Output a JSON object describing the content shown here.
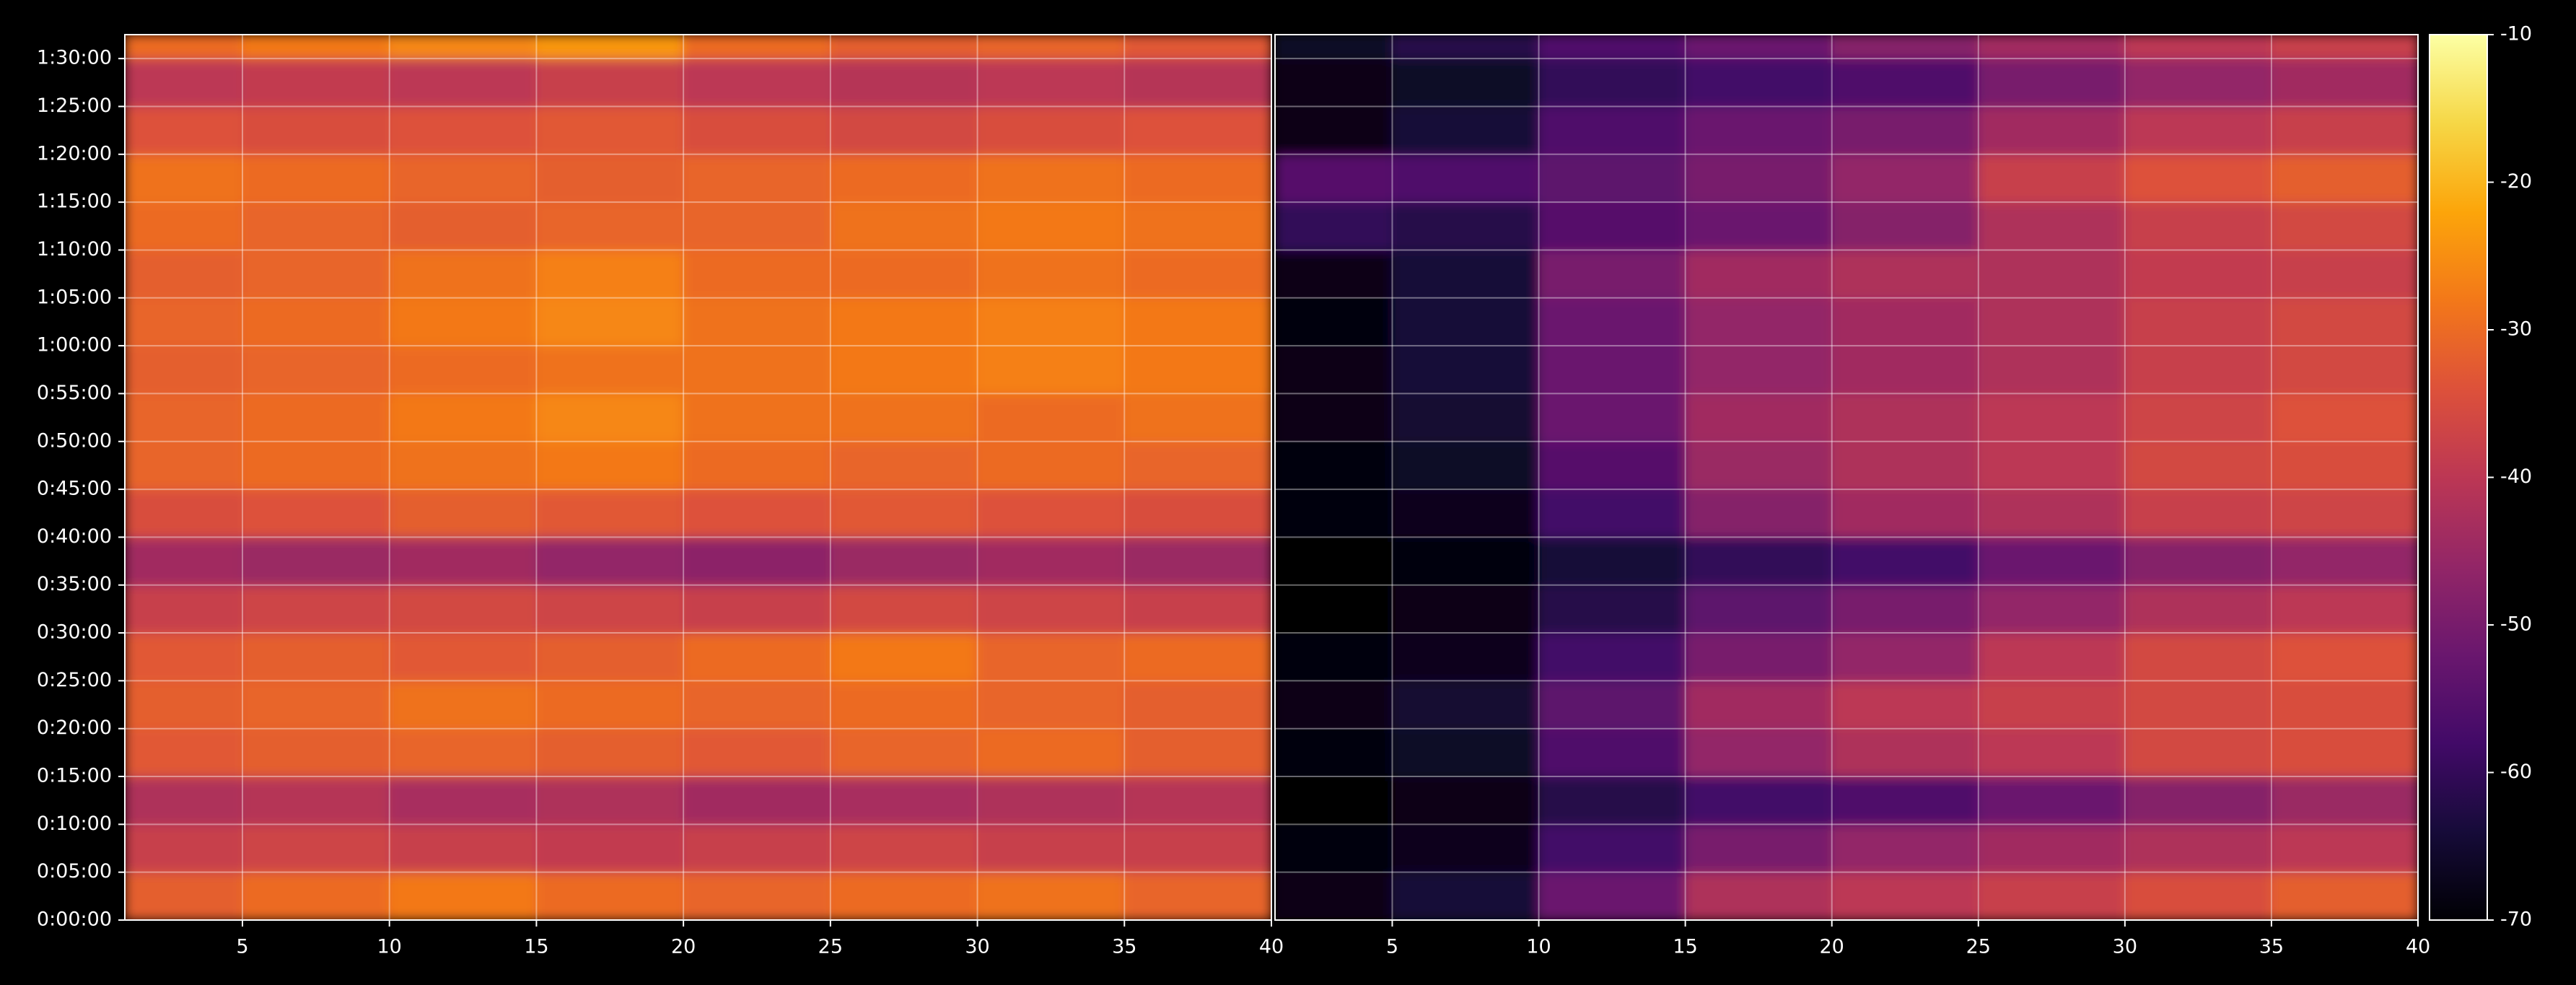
{
  "chart_data": [
    {
      "type": "heatmap",
      "colormap": "inferno",
      "grid": true,
      "xlim": [
        1,
        40
      ],
      "xticks": [
        5,
        10,
        15,
        20,
        25,
        30,
        35,
        40
      ],
      "ylim": [
        0,
        5550
      ],
      "yticks": [
        {
          "value": 0,
          "label": "0:00:00"
        },
        {
          "value": 300,
          "label": "0:05:00"
        },
        {
          "value": 600,
          "label": "0:10:00"
        },
        {
          "value": 900,
          "label": "0:15:00"
        },
        {
          "value": 1200,
          "label": "0:20:00"
        },
        {
          "value": 1500,
          "label": "0:25:00"
        },
        {
          "value": 1800,
          "label": "0:30:00"
        },
        {
          "value": 2100,
          "label": "0:35:00"
        },
        {
          "value": 2400,
          "label": "0:40:00"
        },
        {
          "value": 2700,
          "label": "0:45:00"
        },
        {
          "value": 3000,
          "label": "0:50:00"
        },
        {
          "value": 3300,
          "label": "0:55:00"
        },
        {
          "value": 3600,
          "label": "1:00:00"
        },
        {
          "value": 3900,
          "label": "1:05:00"
        },
        {
          "value": 4200,
          "label": "1:10:00"
        },
        {
          "value": 4500,
          "label": "1:15:00"
        },
        {
          "value": 4800,
          "label": "1:20:00"
        },
        {
          "value": 5100,
          "label": "1:25:00"
        },
        {
          "value": 5400,
          "label": "1:30:00"
        }
      ],
      "clim": [
        -70,
        -10
      ],
      "x_edges": [
        1,
        5,
        10,
        15,
        20,
        25,
        30,
        35,
        40
      ],
      "y_edges": [
        0,
        300,
        600,
        900,
        1200,
        1500,
        1800,
        2100,
        2400,
        2700,
        3000,
        3300,
        3600,
        3900,
        4200,
        4500,
        4800,
        5100,
        5400,
        5550
      ],
      "values": [
        [
          -32,
          -30,
          -28,
          -30,
          -31,
          -30,
          -29,
          -31
        ],
        [
          -38,
          -37,
          -38,
          -39,
          -38,
          -37,
          -38,
          -38
        ],
        [
          -42,
          -41,
          -43,
          -42,
          -44,
          -43,
          -42,
          -41
        ],
        [
          -33,
          -32,
          -31,
          -32,
          -33,
          -31,
          -30,
          -32
        ],
        [
          -32,
          -31,
          -29,
          -30,
          -31,
          -30,
          -31,
          -32
        ],
        [
          -33,
          -32,
          -33,
          -32,
          -30,
          -28,
          -31,
          -30
        ],
        [
          -38,
          -37,
          -36,
          -37,
          -38,
          -36,
          -37,
          -38
        ],
        [
          -44,
          -45,
          -44,
          -46,
          -47,
          -45,
          -44,
          -45
        ],
        [
          -35,
          -34,
          -32,
          -33,
          -34,
          -33,
          -34,
          -35
        ],
        [
          -31,
          -30,
          -29,
          -28,
          -30,
          -31,
          -30,
          -31
        ],
        [
          -31,
          -30,
          -28,
          -26,
          -29,
          -29,
          -30,
          -29
        ],
        [
          -32,
          -31,
          -30,
          -29,
          -29,
          -28,
          -27,
          -28
        ],
        [
          -31,
          -30,
          -28,
          -26,
          -29,
          -28,
          -27,
          -28
        ],
        [
          -32,
          -31,
          -29,
          -27,
          -30,
          -30,
          -29,
          -30
        ],
        [
          -30,
          -31,
          -32,
          -31,
          -31,
          -29,
          -28,
          -29
        ],
        [
          -29,
          -30,
          -31,
          -32,
          -31,
          -30,
          -29,
          -30
        ],
        [
          -34,
          -35,
          -34,
          -33,
          -35,
          -36,
          -35,
          -34
        ],
        [
          -40,
          -39,
          -40,
          -38,
          -40,
          -41,
          -40,
          -41
        ],
        [
          -30,
          -28,
          -26,
          -24,
          -30,
          -32,
          -31,
          -33
        ]
      ]
    },
    {
      "type": "heatmap",
      "colormap": "inferno",
      "grid": true,
      "xlim": [
        1,
        40
      ],
      "xticks": [
        5,
        10,
        15,
        20,
        25,
        30,
        35,
        40
      ],
      "ylim": [
        0,
        5550
      ],
      "clim": [
        -70,
        -10
      ],
      "cticks": [
        -10,
        -20,
        -30,
        -40,
        -50,
        -60,
        -70
      ],
      "x_edges": [
        1,
        5,
        10,
        15,
        20,
        25,
        30,
        35,
        40
      ],
      "y_edges": [
        0,
        300,
        600,
        900,
        1200,
        1500,
        1800,
        2100,
        2400,
        2700,
        3000,
        3300,
        3600,
        3900,
        4200,
        4500,
        4800,
        5100,
        5400,
        5550
      ],
      "values": [
        [
          -68,
          -64,
          -52,
          -42,
          -40,
          -38,
          -35,
          -32
        ],
        [
          -69,
          -67,
          -58,
          -50,
          -46,
          -44,
          -42,
          -40
        ],
        [
          -70,
          -68,
          -62,
          -58,
          -56,
          -52,
          -48,
          -45
        ],
        [
          -69,
          -66,
          -56,
          -46,
          -42,
          -40,
          -36,
          -35
        ],
        [
          -68,
          -65,
          -54,
          -44,
          -40,
          -38,
          -36,
          -35
        ],
        [
          -69,
          -67,
          -58,
          -50,
          -46,
          -40,
          -36,
          -34
        ],
        [
          -70,
          -68,
          -62,
          -54,
          -50,
          -46,
          -42,
          -40
        ],
        [
          -70,
          -69,
          -64,
          -60,
          -58,
          -52,
          -48,
          -46
        ],
        [
          -69,
          -67,
          -58,
          -48,
          -44,
          -42,
          -38,
          -37
        ],
        [
          -69,
          -66,
          -55,
          -45,
          -42,
          -40,
          -36,
          -35
        ],
        [
          -68,
          -65,
          -52,
          -44,
          -42,
          -40,
          -37,
          -34
        ],
        [
          -68,
          -64,
          -52,
          -46,
          -44,
          -42,
          -38,
          -36
        ],
        [
          -69,
          -64,
          -52,
          -46,
          -44,
          -42,
          -38,
          -36
        ],
        [
          -68,
          -64,
          -50,
          -44,
          -42,
          -42,
          -39,
          -38
        ],
        [
          -60,
          -62,
          -55,
          -52,
          -48,
          -42,
          -38,
          -36
        ],
        [
          -55,
          -56,
          -54,
          -50,
          -46,
          -38,
          -34,
          -32
        ],
        [
          -68,
          -64,
          -56,
          -52,
          -50,
          -44,
          -40,
          -38
        ],
        [
          -68,
          -66,
          -60,
          -58,
          -56,
          -50,
          -46,
          -44
        ],
        [
          -66,
          -62,
          -56,
          -52,
          -48,
          -44,
          -40,
          -38
        ]
      ]
    }
  ]
}
